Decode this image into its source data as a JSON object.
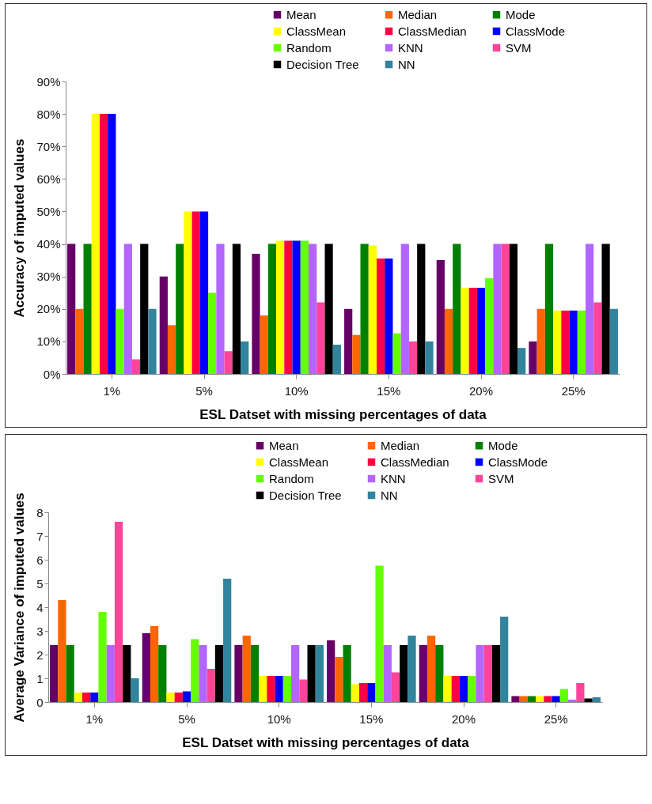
{
  "chart_data": [
    {
      "type": "bar",
      "xlabel": "ESL Datset with missing percentages of data",
      "ylabel": "Accuracy of imputed values",
      "categories": [
        "1%",
        "5%",
        "10%",
        "15%",
        "20%",
        "25%"
      ],
      "ylim": [
        0,
        90
      ],
      "yticks": [
        {
          "value": 0,
          "label": "0%"
        },
        {
          "value": 10,
          "label": "10%"
        },
        {
          "value": 20,
          "label": "20%"
        },
        {
          "value": 30,
          "label": "30%"
        },
        {
          "value": 40,
          "label": "40%"
        },
        {
          "value": 50,
          "label": "50%"
        },
        {
          "value": 60,
          "label": "60%"
        },
        {
          "value": 70,
          "label": "70%"
        },
        {
          "value": 80,
          "label": "80%"
        },
        {
          "value": 90,
          "label": "90%"
        }
      ],
      "legend": "top right",
      "series": [
        {
          "name": "Mean",
          "color": "#660066",
          "values": [
            40,
            30,
            37,
            20,
            35,
            10
          ]
        },
        {
          "name": "Median",
          "color": "#ff6600",
          "values": [
            20,
            15,
            18,
            12,
            20,
            20
          ]
        },
        {
          "name": "Mode",
          "color": "#008000",
          "values": [
            40,
            40,
            40,
            40,
            40,
            40
          ]
        },
        {
          "name": "ClassMean",
          "color": "#ffff00",
          "values": [
            80,
            50,
            41,
            39.5,
            26.5,
            19.5
          ]
        },
        {
          "name": "ClassMedian",
          "color": "#ff0040",
          "values": [
            80,
            50,
            41,
            35.5,
            26.5,
            19.5
          ]
        },
        {
          "name": "ClassMode",
          "color": "#0000ff",
          "values": [
            80,
            50,
            41,
            35.5,
            26.5,
            19.5
          ]
        },
        {
          "name": "Random",
          "color": "#66ff00",
          "values": [
            20,
            25,
            41,
            12.5,
            29.5,
            19.5
          ]
        },
        {
          "name": "KNN",
          "color": "#b266ff",
          "values": [
            40,
            40,
            40,
            40,
            40,
            40
          ]
        },
        {
          "name": "SVM",
          "color": "#ff4499",
          "values": [
            4.5,
            7,
            22,
            10,
            40,
            22
          ]
        },
        {
          "name": "Decision Tree",
          "color": "#000000",
          "values": [
            40,
            40,
            40,
            40,
            40,
            40
          ]
        },
        {
          "name": "NN",
          "color": "#31849b",
          "values": [
            20,
            10,
            9,
            10,
            8,
            20
          ]
        }
      ]
    },
    {
      "type": "bar",
      "xlabel": "ESL Datset with missing percentages of data",
      "ylabel": "Average Variance of imputed values",
      "categories": [
        "1%",
        "5%",
        "10%",
        "15%",
        "20%",
        "25%"
      ],
      "ylim": [
        0,
        8
      ],
      "yticks": [
        0,
        1,
        2,
        3,
        4,
        5,
        6,
        7,
        8
      ],
      "legend": "top right",
      "series": [
        {
          "name": "Mean",
          "color": "#660066",
          "values": [
            2.4,
            2.9,
            2.4,
            2.6,
            2.4,
            0.25
          ]
        },
        {
          "name": "Median",
          "color": "#ff6600",
          "values": [
            4.3,
            3.2,
            2.8,
            1.9,
            2.8,
            0.25
          ]
        },
        {
          "name": "Mode",
          "color": "#008000",
          "values": [
            2.4,
            2.4,
            2.4,
            2.4,
            2.4,
            0.25
          ]
        },
        {
          "name": "ClassMean",
          "color": "#ffff00",
          "values": [
            0.4,
            0.4,
            1.1,
            0.75,
            1.1,
            0.25
          ]
        },
        {
          "name": "ClassMedian",
          "color": "#ff0040",
          "values": [
            0.4,
            0.4,
            1.1,
            0.8,
            1.1,
            0.25
          ]
        },
        {
          "name": "ClassMode",
          "color": "#0000ff",
          "values": [
            0.4,
            0.45,
            1.1,
            0.8,
            1.1,
            0.25
          ]
        },
        {
          "name": "Random",
          "color": "#66ff00",
          "values": [
            3.8,
            2.65,
            1.1,
            5.75,
            1.1,
            0.55
          ]
        },
        {
          "name": "KNN",
          "color": "#b266ff",
          "values": [
            2.4,
            2.4,
            2.4,
            2.4,
            2.4,
            0.1
          ]
        },
        {
          "name": "SVM",
          "color": "#ff4499",
          "values": [
            7.6,
            1.4,
            0.95,
            1.25,
            2.4,
            0.8
          ]
        },
        {
          "name": "Decision Tree",
          "color": "#000000",
          "values": [
            2.4,
            2.4,
            2.4,
            2.4,
            2.4,
            0.15
          ]
        },
        {
          "name": "NN",
          "color": "#31849b",
          "values": [
            1,
            5.2,
            2.4,
            2.8,
            3.6,
            0.2
          ]
        }
      ]
    }
  ]
}
